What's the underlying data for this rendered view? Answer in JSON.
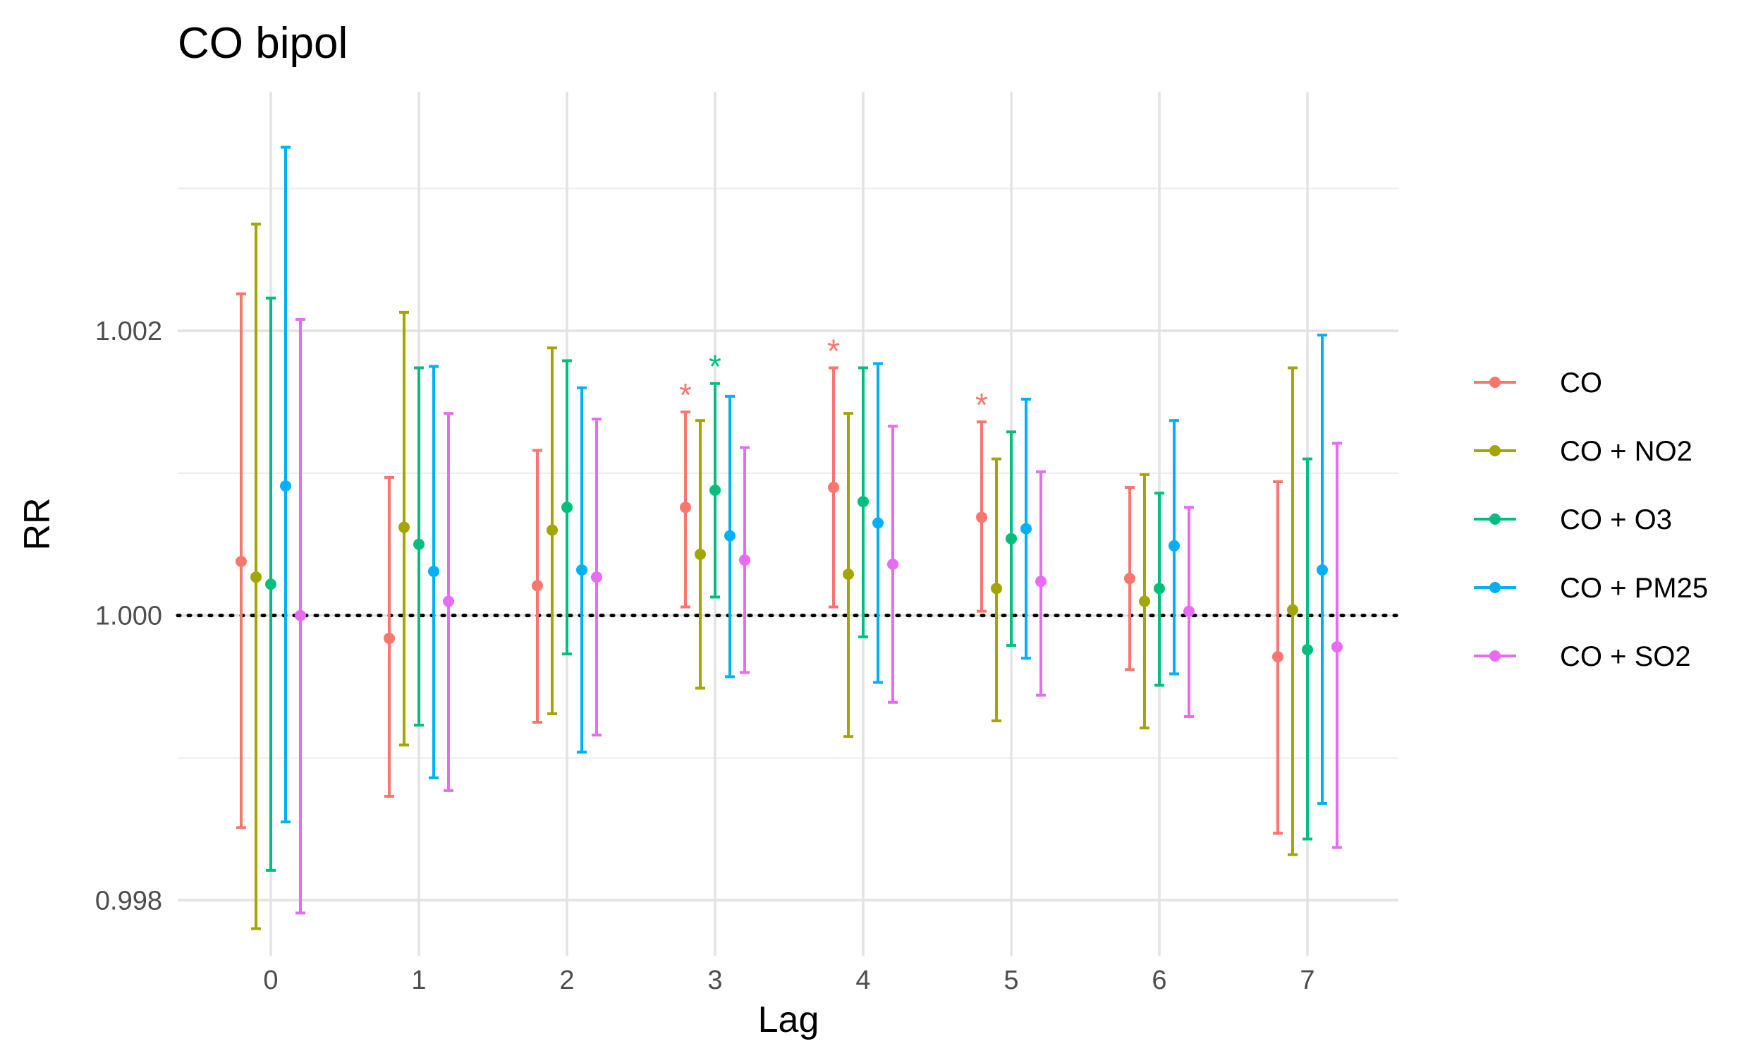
{
  "chart_data": {
    "type": "errorbar",
    "title": "CO bipol",
    "xlabel": "Lag",
    "ylabel": "RR",
    "categories": [
      "0",
      "1",
      "2",
      "3",
      "4",
      "5",
      "6",
      "7"
    ],
    "ylim": [
      0.99761,
      1.00368
    ],
    "yticks": [
      "0.998",
      "1.000",
      "1.002"
    ],
    "reference_line": 1.0,
    "legend_position": "right",
    "significance_marker": "*",
    "series": [
      {
        "name": "CO",
        "color": "#F8766D",
        "estimate": [
          1.00038,
          0.99984,
          1.00021,
          1.00076,
          1.0009,
          1.00069,
          1.00026,
          0.99971
        ],
        "lower": [
          0.99851,
          0.99873,
          0.99925,
          1.00006,
          1.00006,
          1.00003,
          0.99962,
          0.99847
        ],
        "upper": [
          1.00226,
          1.00097,
          1.00116,
          1.00143,
          1.00174,
          1.00136,
          1.0009,
          1.00094
        ],
        "significant": [
          false,
          false,
          false,
          true,
          true,
          true,
          false,
          false
        ]
      },
      {
        "name": "CO + NO2",
        "color": "#A3A500",
        "estimate": [
          1.00027,
          1.00062,
          1.0006,
          1.00043,
          1.00029,
          1.00019,
          1.0001,
          1.00004
        ],
        "lower": [
          0.9978,
          0.99909,
          0.99931,
          0.99949,
          0.99915,
          0.99926,
          0.99921,
          0.99832
        ],
        "upper": [
          1.00275,
          1.00213,
          1.00188,
          1.00137,
          1.00142,
          1.0011,
          1.00099,
          1.00174
        ],
        "significant": [
          false,
          false,
          false,
          false,
          false,
          false,
          false,
          false
        ]
      },
      {
        "name": "CO + O3",
        "color": "#00BF7D",
        "estimate": [
          1.00022,
          1.0005,
          1.00076,
          1.00088,
          1.0008,
          1.00054,
          1.00019,
          0.99976
        ],
        "lower": [
          0.99821,
          0.99923,
          0.99973,
          1.00013,
          0.99985,
          0.99979,
          0.99951,
          0.99843
        ],
        "upper": [
          1.00223,
          1.00174,
          1.00179,
          1.00163,
          1.00174,
          1.00129,
          1.00086,
          1.0011
        ],
        "significant": [
          false,
          false,
          false,
          true,
          false,
          false,
          false,
          false
        ]
      },
      {
        "name": "CO + PM25",
        "color": "#00B0F6",
        "estimate": [
          1.00091,
          1.00031,
          1.00032,
          1.00056,
          1.00065,
          1.00061,
          1.00049,
          1.00032
        ],
        "lower": [
          0.99855,
          0.99886,
          0.99904,
          0.99957,
          0.99953,
          0.9997,
          0.99959,
          0.99868
        ],
        "upper": [
          1.00329,
          1.00175,
          1.0016,
          1.00154,
          1.00177,
          1.00152,
          1.00137,
          1.00197
        ],
        "significant": [
          false,
          false,
          false,
          false,
          false,
          false,
          false,
          false
        ]
      },
      {
        "name": "CO + SO2",
        "color": "#E76BF3",
        "estimate": [
          1.0,
          1.0001,
          1.00027,
          1.00039,
          1.00036,
          1.00024,
          1.00003,
          0.99978
        ],
        "lower": [
          0.99791,
          0.99877,
          0.99916,
          0.9996,
          0.99939,
          0.99944,
          0.99929,
          0.99837
        ],
        "upper": [
          1.00208,
          1.00142,
          1.00138,
          1.00118,
          1.00133,
          1.00101,
          1.00076,
          1.00121
        ],
        "significant": [
          false,
          false,
          false,
          false,
          false,
          false,
          false,
          false
        ]
      }
    ]
  }
}
